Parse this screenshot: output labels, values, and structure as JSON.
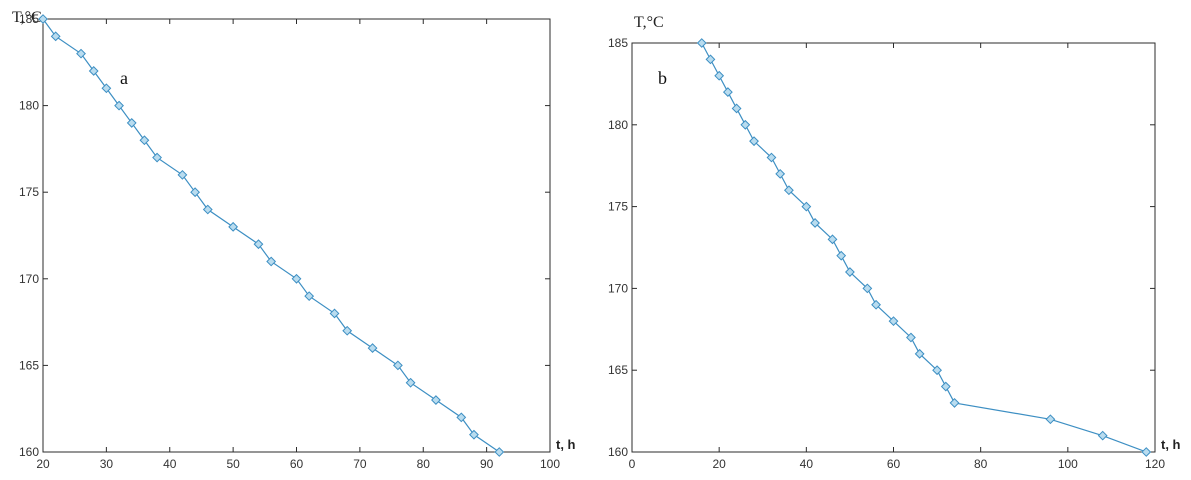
{
  "chart_data": [
    {
      "type": "line",
      "panel_label": "a",
      "ylabel": "T,°C",
      "xlabel": "t, h",
      "xlim": [
        20,
        100
      ],
      "ylim": [
        160,
        185
      ],
      "xticks": [
        20,
        30,
        40,
        50,
        60,
        70,
        80,
        90,
        100
      ],
      "yticks": [
        160,
        165,
        170,
        175,
        180,
        185
      ],
      "grid": false,
      "series": [
        {
          "color": "#3d8fc3",
          "marker_fill": "#b9dcef",
          "x": [
            20,
            22,
            26,
            28,
            30,
            32,
            34,
            36,
            38,
            42,
            44,
            46,
            50,
            54,
            56,
            60,
            62,
            66,
            68,
            72,
            76,
            78,
            82,
            86,
            88,
            92
          ],
          "y": [
            185,
            184,
            183,
            182,
            181,
            180,
            179,
            178,
            177,
            176,
            175,
            174,
            173,
            172,
            171,
            170,
            169,
            168,
            167,
            166,
            165,
            164,
            163,
            162,
            161,
            160
          ]
        }
      ]
    },
    {
      "type": "line",
      "panel_label": "b",
      "ylabel": "T,°C",
      "xlabel": "t, h",
      "xlim": [
        0,
        120
      ],
      "ylim": [
        160,
        185
      ],
      "xticks": [
        0,
        20,
        40,
        60,
        80,
        100,
        120
      ],
      "yticks": [
        160,
        165,
        170,
        175,
        180,
        185
      ],
      "grid": false,
      "series": [
        {
          "color": "#3d8fc3",
          "marker_fill": "#b9dcef",
          "x": [
            16,
            18,
            20,
            22,
            24,
            26,
            28,
            32,
            34,
            36,
            40,
            42,
            46,
            48,
            50,
            54,
            56,
            60,
            64,
            66,
            70,
            72,
            74,
            96,
            108,
            118
          ],
          "y": [
            185,
            184,
            183,
            182,
            181,
            180,
            179,
            178,
            177,
            176,
            175,
            174,
            173,
            172,
            171,
            170,
            169,
            168,
            167,
            166,
            165,
            164,
            163,
            162,
            161,
            160
          ]
        }
      ]
    }
  ]
}
